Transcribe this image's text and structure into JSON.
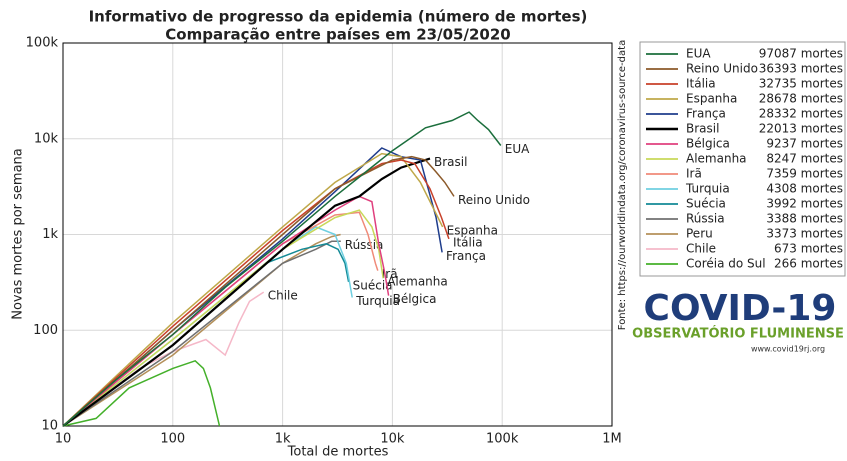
{
  "chart_data": {
    "type": "line",
    "title": "Informativo de progresso da epidemia (número de mortes)",
    "subtitle": "Comparação entre países em 23/05/2020",
    "x_label": "Total de mortes",
    "y_label": "Novas mortes por semana",
    "source": "Fonte: https://ourworldindata.org/coronavirus-source-data",
    "logo": {
      "title": "COVID-19",
      "subtitle": "OBSERVATÓRIO FLUMINENSE",
      "url": "www.covid19rj.org"
    },
    "x_log": true,
    "y_log": true,
    "grid": true,
    "legend": "right",
    "xlim": [
      10,
      1000000
    ],
    "ylim": [
      10,
      100000
    ],
    "xticks": [
      10,
      100,
      {
        "value": 1000,
        "label": "1k"
      },
      {
        "value": 10000,
        "label": "10k"
      },
      {
        "value": 100000,
        "label": "100k"
      },
      {
        "value": 1000000,
        "label": "1M"
      }
    ],
    "yticks": [
      10,
      100,
      {
        "value": 1000,
        "label": "1k"
      },
      {
        "value": 10000,
        "label": "10k"
      },
      {
        "value": 100000,
        "label": "100k"
      }
    ],
    "series": [
      {
        "name": "EUA",
        "total_label": "97087 mortes",
        "color": "#1b6e3c",
        "end_label": true,
        "x": [
          10,
          30,
          100,
          300,
          1000,
          3000,
          10000,
          20000,
          35000,
          50000,
          60000,
          75000,
          97087
        ],
        "values": [
          10,
          30,
          90,
          280,
          850,
          2500,
          7500,
          13000,
          15500,
          19000,
          15500,
          12500,
          8500
        ]
      },
      {
        "name": "Reino Unido",
        "total_label": "36393 mortes",
        "color": "#8c5a2a",
        "end_label": true,
        "x": [
          10,
          100,
          1000,
          3000,
          10000,
          15000,
          20000,
          25000,
          30000,
          36393
        ],
        "values": [
          10,
          100,
          1000,
          3000,
          6000,
          6500,
          6000,
          4500,
          3500,
          2500
        ]
      },
      {
        "name": "Itália",
        "total_label": "32735 mortes",
        "color": "#c8412a",
        "end_label": true,
        "x": [
          10,
          100,
          1000,
          3000,
          8000,
          12000,
          16000,
          22000,
          28000,
          32735
        ],
        "values": [
          10,
          110,
          1100,
          3000,
          5500,
          6000,
          5500,
          3000,
          1500,
          900
        ]
      },
      {
        "name": "Espanha",
        "total_label": "28678 mortes",
        "color": "#bfa84a",
        "end_label": true,
        "x": [
          10,
          100,
          1000,
          3000,
          8000,
          12000,
          18000,
          26000,
          28678
        ],
        "values": [
          10,
          120,
          1200,
          3500,
          7000,
          6500,
          3500,
          1500,
          1200
        ]
      },
      {
        "name": "França",
        "total_label": "28332 mortes",
        "color": "#1f3d8c",
        "end_label": true,
        "x": [
          10,
          100,
          1000,
          3000,
          8000,
          12000,
          18000,
          25000,
          28332
        ],
        "values": [
          10,
          100,
          900,
          2800,
          8000,
          6500,
          6000,
          1500,
          650
        ]
      },
      {
        "name": "Brasil",
        "total_label": "22013 mortes",
        "color": "#000000",
        "end_label": true,
        "x": [
          10,
          100,
          1000,
          3000,
          5000,
          8000,
          12000,
          22013
        ],
        "values": [
          10,
          70,
          700,
          2000,
          2500,
          3800,
          5000,
          6200
        ]
      },
      {
        "name": "Bélgica",
        "total_label": "9237 mortes",
        "color": "#e0407e",
        "end_label": true,
        "x": [
          10,
          100,
          1000,
          3000,
          5000,
          6500,
          7500,
          8500,
          9237
        ],
        "values": [
          10,
          90,
          800,
          1800,
          2500,
          2200,
          800,
          400,
          230
        ]
      },
      {
        "name": "Alemanha",
        "total_label": "8247 mortes",
        "color": "#c8d85a",
        "end_label": true,
        "x": [
          10,
          100,
          1000,
          3000,
          5000,
          6500,
          7500,
          8247
        ],
        "values": [
          10,
          80,
          700,
          1500,
          1800,
          1200,
          700,
          350
        ]
      },
      {
        "name": "Irã",
        "total_label": "7359 mortes",
        "color": "#f08a78",
        "end_label": true,
        "x": [
          10,
          100,
          1000,
          3000,
          5000,
          6000,
          7000,
          7359
        ],
        "values": [
          10,
          90,
          800,
          1600,
          1700,
          1000,
          500,
          420
        ]
      },
      {
        "name": "Turquia",
        "total_label": "4308 mortes",
        "color": "#6fcfe0",
        "end_label": true,
        "x": [
          10,
          100,
          1000,
          2000,
          3000,
          3800,
          4308
        ],
        "values": [
          10,
          80,
          700,
          1200,
          1000,
          500,
          220
        ]
      },
      {
        "name": "Suécia",
        "total_label": "3992 mortes",
        "color": "#138a96",
        "end_label": true,
        "x": [
          10,
          100,
          700,
          1500,
          2500,
          3200,
          3700,
          3992
        ],
        "values": [
          10,
          70,
          500,
          700,
          800,
          700,
          500,
          320
        ]
      },
      {
        "name": "Rússia",
        "total_label": "3388 mortes",
        "color": "#707070",
        "end_label": true,
        "x": [
          10,
          100,
          1000,
          2000,
          2800,
          3388
        ],
        "values": [
          10,
          60,
          500,
          700,
          850,
          850
        ]
      },
      {
        "name": "Peru",
        "total_label": "3373 mortes",
        "color": "#b4905a",
        "end_label": false,
        "x": [
          10,
          100,
          1000,
          2000,
          2800,
          3373
        ],
        "values": [
          10,
          55,
          500,
          800,
          950,
          1000
        ]
      },
      {
        "name": "Chile",
        "total_label": "673 mortes",
        "color": "#f5b8c8",
        "end_label": true,
        "x": [
          10,
          50,
          100,
          200,
          300,
          400,
          500,
          673
        ],
        "values": [
          10,
          40,
          60,
          80,
          55,
          120,
          200,
          250
        ]
      },
      {
        "name": "Coréia do Sul",
        "total_label": "266 mortes",
        "color": "#44b02a",
        "end_label": false,
        "x": [
          10,
          20,
          40,
          100,
          160,
          190,
          220,
          266
        ],
        "values": [
          10,
          12,
          25,
          40,
          48,
          40,
          25,
          10
        ]
      }
    ]
  }
}
